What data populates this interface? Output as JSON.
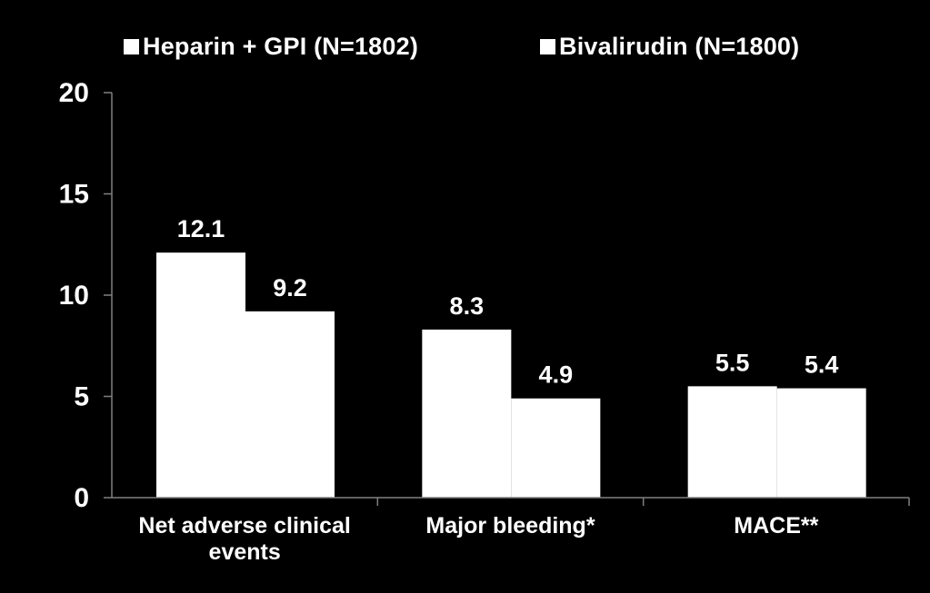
{
  "chart_data": {
    "type": "bar",
    "title": "",
    "xlabel": "",
    "ylabel": "",
    "categories": [
      [
        "Net adverse clinical",
        "events"
      ],
      [
        "Major bleeding*"
      ],
      [
        "MACE**"
      ]
    ],
    "series": [
      {
        "name": "Heparin + GPI (N=1802)",
        "values": [
          12.1,
          8.3,
          5.5
        ],
        "color": "#ffffff"
      },
      {
        "name": "Bivalirudin (N=1800)",
        "values": [
          9.2,
          4.9,
          5.4
        ],
        "color": "#ffffff"
      }
    ],
    "value_labels": [
      [
        "12.1",
        "8.3",
        "5.5"
      ],
      [
        "9.2",
        "4.9",
        "5.4"
      ]
    ],
    "yticks": [
      "0",
      "5",
      "10",
      "15",
      "20"
    ],
    "ylim": [
      0,
      20
    ],
    "grid": false,
    "legend_position": "top",
    "colors": {
      "background": "#000000",
      "bars": "#ffffff",
      "axis": "#808080",
      "text": "#ffffff"
    }
  }
}
